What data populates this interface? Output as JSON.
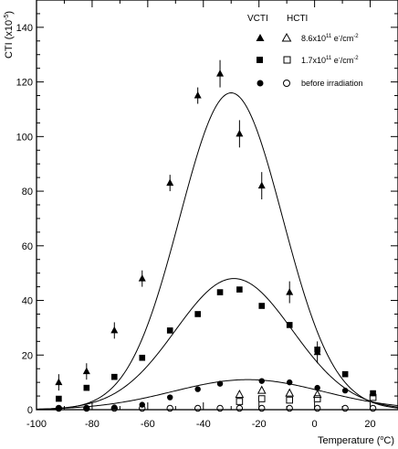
{
  "chart_data": {
    "type": "scatter",
    "title": "",
    "xlabel_prefix": "Temperature (",
    "xlabel_unit_sup": "o",
    "xlabel_suffix": "C)",
    "ylabel_prefix": "CTI (x10",
    "ylabel_sup": "-5",
    "ylabel_suffix": ")",
    "xlim": [
      -100,
      30
    ],
    "ylim": [
      0,
      150
    ],
    "xticks": [
      -100,
      -80,
      -60,
      -40,
      -20,
      0,
      20
    ],
    "yticks": [
      0,
      20,
      40,
      60,
      80,
      100,
      120,
      140
    ],
    "grid": false,
    "legend": {
      "position": "top-right",
      "col_headers": [
        "VCTI",
        "HCTI"
      ],
      "entries": [
        {
          "label_main": "8.6x10",
          "label_sup1": "11",
          "label_mid": " e",
          "label_sup2": "-",
          "label_tail": "/cm",
          "label_sup3": "-2",
          "filled_marker": "triangle",
          "open_marker": "triangle"
        },
        {
          "label_main": "1.7x10",
          "label_sup1": "11",
          "label_mid": " e",
          "label_sup2": "-",
          "label_tail": "/cm",
          "label_sup3": "-2",
          "filled_marker": "square",
          "open_marker": "square"
        },
        {
          "label_main": "before irradiation",
          "filled_marker": "circle",
          "open_marker": "circle"
        }
      ]
    },
    "series": [
      {
        "name": "VCTI 8.6x10^11 e-/cm-2",
        "marker": "triangle",
        "filled": true,
        "points": [
          [
            -92,
            10,
            3
          ],
          [
            -82,
            14,
            3
          ],
          [
            -72,
            29,
            3
          ],
          [
            -62,
            48,
            3
          ],
          [
            -52,
            83,
            3
          ],
          [
            -42,
            115,
            3
          ],
          [
            -34,
            123,
            5
          ],
          [
            -27,
            101,
            5
          ],
          [
            -19,
            82,
            5
          ],
          [
            -9,
            43,
            4
          ],
          [
            1,
            21,
            4
          ]
        ]
      },
      {
        "name": "VCTI 1.7x10^11 e-/cm-2",
        "marker": "square",
        "filled": true,
        "points": [
          [
            -92,
            4,
            0
          ],
          [
            -82,
            8,
            0
          ],
          [
            -72,
            12,
            0
          ],
          [
            -62,
            19,
            0
          ],
          [
            -52,
            29,
            0
          ],
          [
            -42,
            35,
            0
          ],
          [
            -34,
            43,
            0
          ],
          [
            -27,
            44,
            0
          ],
          [
            -19,
            38,
            0
          ],
          [
            -9,
            31,
            0
          ],
          [
            1,
            22,
            0
          ],
          [
            11,
            13,
            0
          ],
          [
            21,
            6,
            0
          ]
        ]
      },
      {
        "name": "VCTI before irradiation",
        "marker": "circle",
        "filled": true,
        "points": [
          [
            -92,
            0.5,
            0
          ],
          [
            -82,
            0.5,
            0
          ],
          [
            -72,
            0.8,
            0
          ],
          [
            -62,
            1.8,
            0
          ],
          [
            -52,
            4.5,
            0
          ],
          [
            -42,
            7.5,
            0
          ],
          [
            -34,
            9.5,
            0
          ],
          [
            -19,
            10.5,
            0
          ],
          [
            -9,
            10,
            0
          ],
          [
            1,
            8,
            0
          ],
          [
            11,
            7,
            0
          ]
        ]
      },
      {
        "name": "HCTI 8.6x10^11 e-/cm-2",
        "marker": "triangle",
        "filled": false,
        "points": [
          [
            -27,
            5.5
          ],
          [
            -19,
            7
          ],
          [
            -9,
            6
          ],
          [
            1,
            5.5
          ]
        ]
      },
      {
        "name": "HCTI 1.7x10^11 e-/cm-2",
        "marker": "square",
        "filled": false,
        "points": [
          [
            -27,
            3
          ],
          [
            -19,
            4
          ],
          [
            -9,
            3.5
          ],
          [
            1,
            4
          ],
          [
            21,
            4.5
          ]
        ]
      },
      {
        "name": "HCTI before irradiation",
        "marker": "circle",
        "filled": false,
        "points": [
          [
            -92,
            0.5
          ],
          [
            -82,
            0.5
          ],
          [
            -72,
            0.5
          ],
          [
            -62,
            0.5
          ],
          [
            -52,
            0.5
          ],
          [
            -42,
            0.5
          ],
          [
            -34,
            0.5
          ],
          [
            -27,
            0.5
          ],
          [
            -19,
            0.5
          ],
          [
            -9,
            0.5
          ],
          [
            1,
            0.5
          ],
          [
            11,
            0.5
          ],
          [
            21,
            0.5
          ]
        ]
      }
    ],
    "fit_curves": [
      {
        "amplitude": 116,
        "center": -30,
        "width": 18.5
      },
      {
        "amplitude": 48,
        "center": -29,
        "width": 21
      },
      {
        "amplitude": 11,
        "center": -24,
        "width": 27
      }
    ]
  }
}
